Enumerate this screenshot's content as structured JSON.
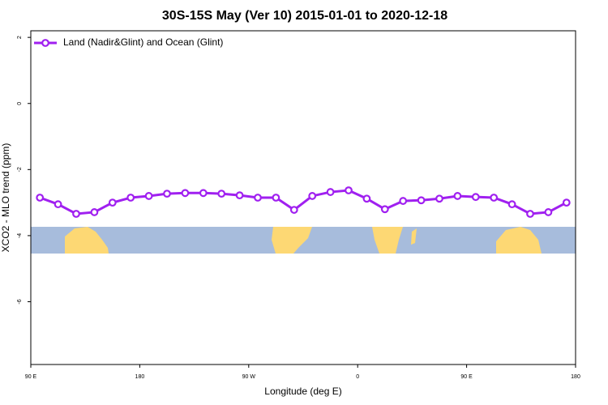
{
  "chart_data": {
    "type": "line",
    "title": "30S-15S May (Ver 10)   2015-01-01 to 2020-12-18",
    "x_label": "Longitude (deg E)",
    "y_label": "XCO2 - MLO trend (ppm)",
    "x": [
      97.5,
      112.5,
      127.5,
      142.5,
      157.5,
      172.5,
      187.5,
      202.5,
      217.5,
      232.5,
      247.5,
      262.5,
      277.5,
      292.5,
      307.5,
      322.5,
      337.5,
      352.5,
      367.5,
      382.5,
      397.5,
      412.5,
      427.5,
      442.5,
      457.5,
      472.5,
      487.5,
      502.5,
      517.5,
      532.5
    ],
    "series": [
      {
        "name": "Land (Nadir&Glint) and Ocean (Glint)",
        "color": "#a020f0",
        "values": [
          -2.85,
          -3.05,
          -3.34,
          -3.29,
          -3.0,
          -2.85,
          -2.8,
          -2.73,
          -2.71,
          -2.71,
          -2.73,
          -2.78,
          -2.85,
          -2.85,
          -3.22,
          -2.8,
          -2.68,
          -2.63,
          -2.88,
          -3.2,
          -2.95,
          -2.93,
          -2.88,
          -2.8,
          -2.83,
          -2.85,
          -3.05,
          -3.34,
          -3.29,
          -3.0
        ]
      }
    ],
    "xlim": [
      90,
      540
    ],
    "xticks": [
      {
        "value": 90,
        "label": "90 E"
      },
      {
        "value": 180,
        "label": "180"
      },
      {
        "value": 270,
        "label": "90 W"
      },
      {
        "value": 360,
        "label": "0"
      },
      {
        "value": 450,
        "label": "90 E"
      },
      {
        "value": 540,
        "label": "180"
      }
    ],
    "ylim": [
      -7.9,
      2.2
    ],
    "yticks": [
      -6,
      -4,
      -2,
      0,
      2
    ],
    "legend": "top-left"
  }
}
